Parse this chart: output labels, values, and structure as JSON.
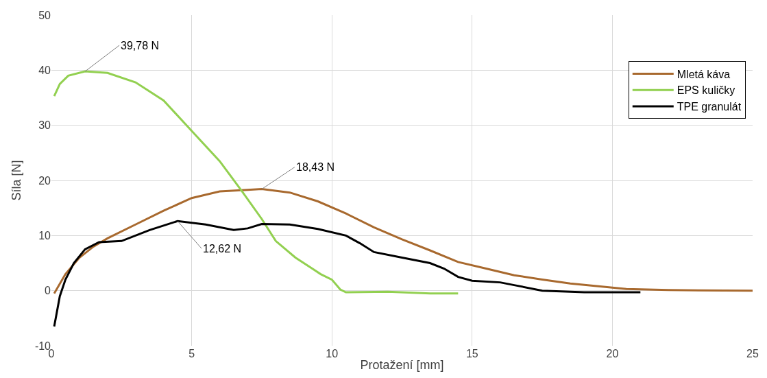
{
  "chart_data": {
    "type": "line",
    "xlabel": "Protažení [mm]",
    "ylabel": "Síla [N]",
    "xlim": [
      0,
      25
    ],
    "xticks": [
      0,
      5,
      10,
      15,
      20,
      25
    ],
    "ylim": [
      -10,
      50
    ],
    "yticks": [
      -10,
      0,
      10,
      20,
      30,
      40,
      50
    ],
    "grid": true,
    "legend": "top right",
    "marker": "none",
    "line_style": "solid",
    "series": [
      {
        "name": "Mletá káva",
        "color": "#a8692e",
        "x": [
          0.1,
          0.5,
          1,
          1.5,
          2,
          3,
          4,
          5,
          6,
          7,
          7.5,
          8.5,
          9.5,
          10.5,
          11.5,
          12.5,
          13.5,
          14.5,
          15.5,
          16.5,
          17.5,
          18.5,
          19.5,
          20.5,
          22,
          25
        ],
        "values": [
          -0.5,
          3,
          6,
          8,
          9.5,
          12,
          14.5,
          16.8,
          18,
          18.3,
          18.43,
          17.8,
          16.2,
          14,
          11.5,
          9.3,
          7.3,
          5.2,
          4,
          2.8,
          2,
          1.3,
          0.8,
          0.3,
          0.1,
          0
        ]
      },
      {
        "name": "EPS kuličky",
        "color": "#92d050",
        "x": [
          0.1,
          0.3,
          0.6,
          1.2,
          2,
          3,
          4,
          5,
          6,
          6.8,
          7.5,
          8,
          8.7,
          9.3,
          9.6,
          10,
          10.3,
          10.5,
          12,
          13.5,
          14.5
        ],
        "values": [
          35.3,
          37.5,
          39,
          39.78,
          39.5,
          37.8,
          34.5,
          29,
          23.5,
          18,
          13,
          9,
          6,
          4,
          3,
          2,
          0.2,
          -0.3,
          -0.2,
          -0.5,
          -0.5
        ]
      },
      {
        "name": "TPE granulát",
        "color": "#000000",
        "x": [
          0.1,
          0.3,
          0.5,
          0.8,
          1.2,
          1.7,
          2.5,
          3.5,
          4.5,
          5.5,
          6.5,
          7,
          7.5,
          8.5,
          9.5,
          10.5,
          11,
          11.5,
          12.5,
          13.5,
          14,
          14.5,
          15,
          16,
          16.5,
          17.5,
          19,
          21
        ],
        "values": [
          -6.5,
          -1,
          2,
          5,
          7.5,
          8.8,
          9,
          11,
          12.62,
          12,
          11,
          11.3,
          12.1,
          12,
          11.2,
          10,
          8.6,
          7,
          6,
          5,
          4,
          2.5,
          1.8,
          1.5,
          1,
          0,
          -0.3,
          -0.3
        ]
      }
    ],
    "annotations": [
      {
        "text": "39,78 N",
        "x": 1.2,
        "y": 39.78
      },
      {
        "text": "18,43 N",
        "x": 7.5,
        "y": 18.43
      },
      {
        "text": "12,62 N",
        "x": 4.5,
        "y": 12.62
      }
    ]
  }
}
